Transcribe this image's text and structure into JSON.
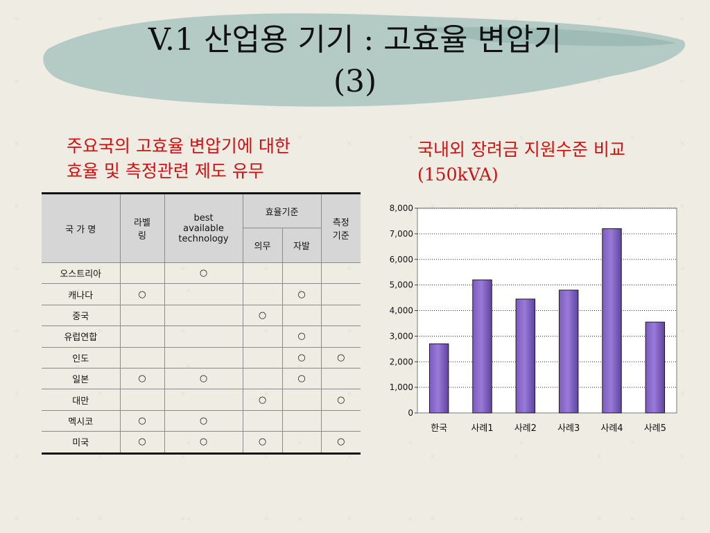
{
  "slide": {
    "title_line1": "V.1 산업용 기기 : 고효율 변압기",
    "title_line2": "(3)",
    "left_heading_line1": "주요국의 고효율 변압기에 대한",
    "left_heading_line2": "효율 및 측정관련 제도 유무",
    "right_heading_line1": "국내외 장려금 지원수준 비교",
    "right_heading_line2": "(150kVA)"
  },
  "table": {
    "headers": {
      "country": "국 가 명",
      "label": "라벨\n링",
      "bat": "best\navailable\ntechnology",
      "efficiency": "효율기준",
      "mandatory": "의무",
      "voluntary": "자발",
      "measure": "측정\n기준"
    },
    "mark": "○",
    "rows": [
      {
        "country": "오스트리아",
        "label": "",
        "bat": "○",
        "mandatory": "",
        "voluntary": "",
        "measure": ""
      },
      {
        "country": "캐나다",
        "label": "○",
        "bat": "",
        "mandatory": "",
        "voluntary": "○",
        "measure": ""
      },
      {
        "country": "중국",
        "label": "",
        "bat": "",
        "mandatory": "○",
        "voluntary": "",
        "measure": ""
      },
      {
        "country": "유럽연합",
        "label": "",
        "bat": "",
        "mandatory": "",
        "voluntary": "○",
        "measure": ""
      },
      {
        "country": "인도",
        "label": "",
        "bat": "",
        "mandatory": "",
        "voluntary": "○",
        "measure": "○"
      },
      {
        "country": "일본",
        "label": "○",
        "bat": "○",
        "mandatory": "",
        "voluntary": "○",
        "measure": ""
      },
      {
        "country": "대만",
        "label": "",
        "bat": "",
        "mandatory": "○",
        "voluntary": "",
        "measure": "○"
      },
      {
        "country": "멕시코",
        "label": "○",
        "bat": "○",
        "mandatory": "",
        "voluntary": "",
        "measure": ""
      },
      {
        "country": "미국",
        "label": "○",
        "bat": "○",
        "mandatory": "○",
        "voluntary": "",
        "measure": "○"
      }
    ]
  },
  "chart_data": {
    "type": "bar",
    "categories": [
      "한국",
      "사례1",
      "사례2",
      "사례3",
      "사례4",
      "사례5"
    ],
    "values": [
      2700,
      5200,
      4450,
      4800,
      7200,
      3550
    ],
    "ylim": [
      0,
      8000
    ],
    "yticks": [
      0,
      1000,
      2000,
      3000,
      4000,
      5000,
      6000,
      7000,
      8000
    ],
    "ytick_labels": [
      "0",
      "1,000",
      "2,000",
      "3,000",
      "4,000",
      "5,000",
      "6,000",
      "7,000",
      "8,000"
    ],
    "grid": true,
    "bar_color": "#9a7ad8",
    "bar_edge_color": "#1a1a1a"
  },
  "colors": {
    "heading": "#d01010",
    "brush": "#a9c4c0",
    "header_bg": "#d6d6d6"
  }
}
